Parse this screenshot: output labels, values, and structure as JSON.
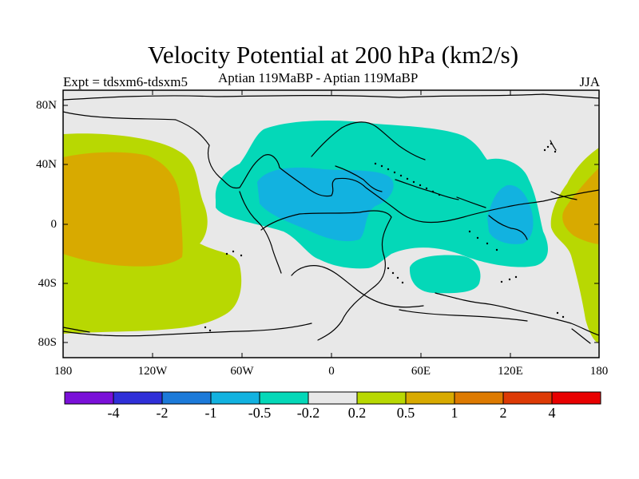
{
  "title": "Velocity Potential at 200 hPa (km2/s)",
  "subtitle": "Aptian   119MaBP - Aptian   119MaBP",
  "left_label": "Expt = tdsxm6-tdsxm5",
  "right_label": "JJA",
  "map": {
    "projection": "cylindrical equidistant",
    "lon_range": [
      -180,
      180
    ],
    "lat_range": [
      -90,
      90
    ],
    "lat_ticks": [
      {
        "value": 80,
        "label": "80N"
      },
      {
        "value": 40,
        "label": "40N"
      },
      {
        "value": 0,
        "label": "0"
      },
      {
        "value": -40,
        "label": "40S"
      },
      {
        "value": -80,
        "label": "80S"
      }
    ],
    "lon_ticks": [
      {
        "value": -180,
        "label": "180"
      },
      {
        "value": -120,
        "label": "120W"
      },
      {
        "value": -60,
        "label": "60W"
      },
      {
        "value": 0,
        "label": "0"
      },
      {
        "value": 60,
        "label": "60E"
      },
      {
        "value": 120,
        "label": "120E"
      },
      {
        "value": 180,
        "label": "180"
      }
    ]
  },
  "colorbar": {
    "colors": [
      "#7a10d8",
      "#2f2fd8",
      "#1c7ad9",
      "#12b2e0",
      "#04d8b8",
      "#e8e8e8",
      "#b8d802",
      "#d8aa00",
      "#dd7a00",
      "#dd3a05",
      "#e80000"
    ],
    "labels": [
      "-4",
      "-2",
      "-1",
      "-0.5",
      "-0.2",
      "0.2",
      "0.5",
      "1",
      "2",
      "4"
    ]
  },
  "chart_data": {
    "type": "map",
    "title": "Velocity Potential at 200 hPa (km2/s)",
    "subtitle": "Aptian   119MaBP - Aptian   119MaBP",
    "levels": [
      -4,
      -2,
      -1,
      -0.5,
      -0.2,
      0.2,
      0.5,
      1,
      2,
      4
    ],
    "colors": [
      "#7a10d8",
      "#2f2fd8",
      "#1c7ad9",
      "#12b2e0",
      "#04d8b8",
      "#e8e8e8",
      "#b8d802",
      "#d8aa00",
      "#dd7a00",
      "#dd3a05",
      "#e80000"
    ],
    "regions": [
      {
        "level_range": [
          -0.5,
          -0.2
        ],
        "color": "#04d8b8",
        "approx_center_lon": 20,
        "approx_center_lat": 20
      },
      {
        "level_range": [
          -1,
          -0.5
        ],
        "color": "#12b2e0",
        "approx_center_lon": -8,
        "approx_center_lat": 12
      },
      {
        "level_range": [
          -1,
          -0.5
        ],
        "color": "#12b2e0",
        "approx_center_lon": 115,
        "approx_center_lat": 3
      },
      {
        "level_range": [
          -0.5,
          -0.2
        ],
        "color": "#04d8b8",
        "approx_center_lon": 70,
        "approx_center_lat": -35
      },
      {
        "level_range": [
          0.2,
          0.5
        ],
        "color": "#b8d802",
        "approx_center_lon": -155,
        "approx_center_lat": -5
      },
      {
        "level_range": [
          0.5,
          1
        ],
        "color": "#d8aa00",
        "approx_center_lon": -160,
        "approx_center_lat": 10
      },
      {
        "level_range": [
          0.2,
          0.5
        ],
        "color": "#b8d802",
        "approx_center_lon": 170,
        "approx_center_lat": -5
      },
      {
        "level_range": [
          0.5,
          1
        ],
        "color": "#d8aa00",
        "approx_center_lon": 175,
        "approx_center_lat": 5
      }
    ],
    "background_level_range": [
      -0.2,
      0.2
    ]
  }
}
